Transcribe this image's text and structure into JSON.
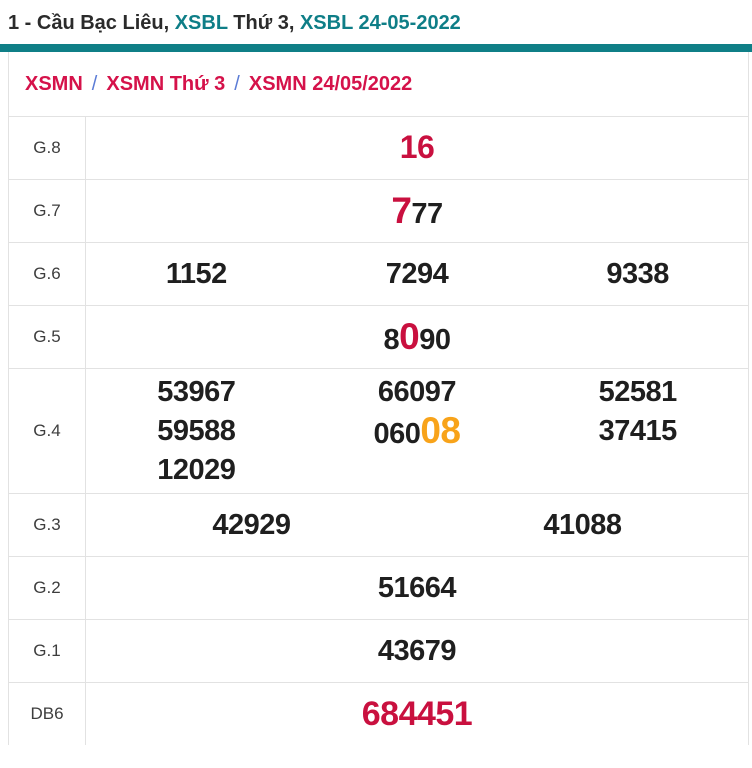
{
  "title": {
    "parts": [
      {
        "text": "1 - Cầu Bạc Liêu, ",
        "style": "dark"
      },
      {
        "text": "XSBL",
        "style": "teal"
      },
      {
        "text": " Thứ 3, ",
        "style": "dark"
      },
      {
        "text": "XSBL 24-05-2022",
        "style": "teal"
      }
    ]
  },
  "breadcrumb": {
    "separator": "/",
    "items": [
      "XSMN",
      "XSMN Thứ 3",
      "XSMN 24/05/2022"
    ]
  },
  "results": {
    "rows": [
      {
        "label": "G.8",
        "columns": 1,
        "values": [
          [
            {
              "text": "16",
              "style": "red"
            }
          ]
        ]
      },
      {
        "label": "G.7",
        "columns": 1,
        "values": [
          [
            {
              "text": "7",
              "style": "red-big"
            },
            {
              "text": "77",
              "style": "plain"
            }
          ]
        ]
      },
      {
        "label": "G.6",
        "columns": 3,
        "values": [
          [
            {
              "text": "1152",
              "style": "plain"
            }
          ],
          [
            {
              "text": "7294",
              "style": "plain"
            }
          ],
          [
            {
              "text": "9338",
              "style": "plain"
            }
          ]
        ]
      },
      {
        "label": "G.5",
        "columns": 1,
        "values": [
          [
            {
              "text": "8",
              "style": "plain"
            },
            {
              "text": "0",
              "style": "red-big"
            },
            {
              "text": "90",
              "style": "plain"
            }
          ]
        ]
      },
      {
        "label": "G.4",
        "columns": 3,
        "values": [
          [
            {
              "text": "53967",
              "style": "plain"
            }
          ],
          [
            {
              "text": "66097",
              "style": "plain"
            }
          ],
          [
            {
              "text": "52581",
              "style": "plain"
            }
          ],
          [
            {
              "text": "59588",
              "style": "plain"
            }
          ],
          [
            {
              "text": "060",
              "style": "plain"
            },
            {
              "text": "08",
              "style": "orange-big"
            }
          ],
          [
            {
              "text": "37415",
              "style": "plain"
            }
          ],
          [
            {
              "text": "12029",
              "style": "plain"
            }
          ]
        ]
      },
      {
        "label": "G.3",
        "columns": 2,
        "values": [
          [
            {
              "text": "42929",
              "style": "plain"
            }
          ],
          [
            {
              "text": "41088",
              "style": "plain"
            }
          ]
        ]
      },
      {
        "label": "G.2",
        "columns": 1,
        "values": [
          [
            {
              "text": "51664",
              "style": "plain"
            }
          ]
        ]
      },
      {
        "label": "G.1",
        "columns": 1,
        "values": [
          [
            {
              "text": "43679",
              "style": "plain"
            }
          ]
        ]
      },
      {
        "label": "DB6",
        "columns": 1,
        "values": [
          [
            {
              "text": "684451",
              "style": "red-prize"
            }
          ]
        ]
      }
    ]
  },
  "colors": {
    "teal_link": "#0e7e87",
    "teal_bar": "#0f7f87",
    "number_red": "#c9103f",
    "breadcrumb_red": "#d5124a",
    "separator_blue": "#5b7cd6",
    "highlight_orange": "#f8a31a",
    "border_gray": "#e2e2e2",
    "number_black": "#1f1f1f"
  }
}
